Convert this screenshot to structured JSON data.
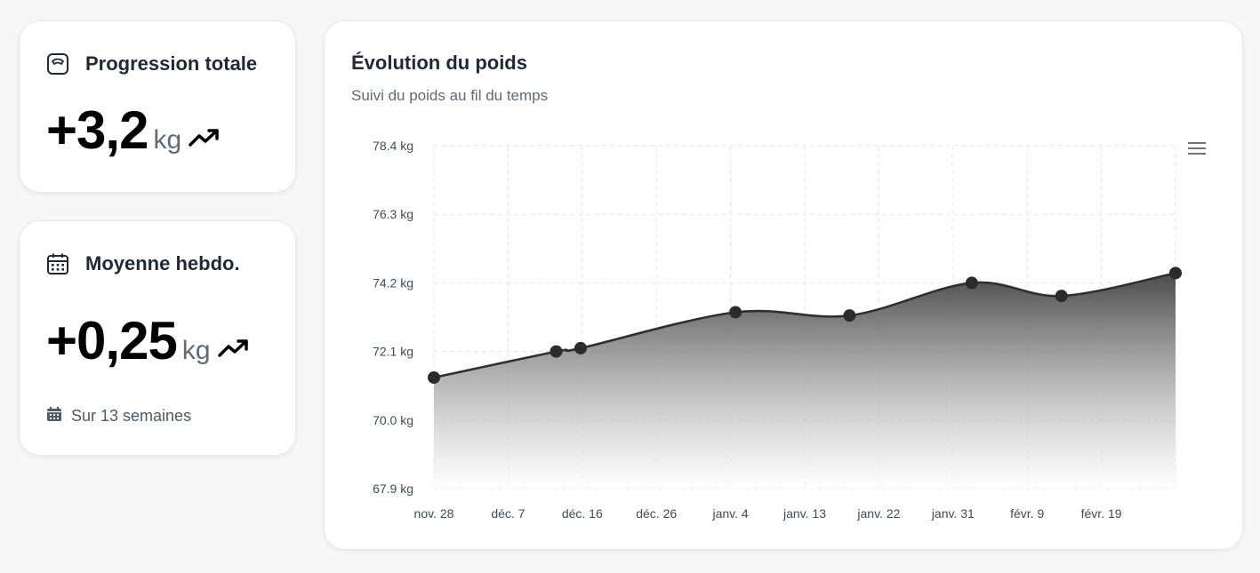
{
  "cards": {
    "total": {
      "title": "Progression totale",
      "value": "+3,2",
      "unit": "kg",
      "icon": "scale-icon",
      "trend_icon": "trend-up-icon"
    },
    "weekly": {
      "title": "Moyenne hebdo.",
      "value": "+0,25",
      "unit": "kg",
      "icon": "calendar-icon",
      "trend_icon": "trend-up-icon",
      "footnote": "Sur 13 semaines",
      "footnote_icon": "calendar-small-icon"
    }
  },
  "chart": {
    "title": "Évolution du poids",
    "subtitle": "Suivi du poids au fil du temps",
    "menu_icon": "hamburger-menu-icon"
  },
  "chart_data": {
    "type": "area",
    "x_tick_labels": [
      "nov. 28",
      "déc. 7",
      "déc. 16",
      "déc. 26",
      "janv. 4",
      "janv. 13",
      "janv. 22",
      "janv. 31",
      "févr. 9",
      "févr. 19"
    ],
    "y_tick_labels": [
      "78.4 kg",
      "76.3 kg",
      "74.2 kg",
      "72.1 kg",
      "70.0 kg",
      "67.9 kg"
    ],
    "ylim": [
      67.9,
      78.4
    ],
    "xlim": [
      "2023-11-28",
      "2024-02-27"
    ],
    "series": [
      {
        "points": [
          {
            "x": "2023-11-28",
            "y": 71.3
          },
          {
            "x": "2023-12-13",
            "y": 72.1
          },
          {
            "x": "2023-12-16",
            "y": 72.2
          },
          {
            "x": "2024-01-04",
            "y": 73.3
          },
          {
            "x": "2024-01-18",
            "y": 73.2
          },
          {
            "x": "2024-02-02",
            "y": 74.2
          },
          {
            "x": "2024-02-13",
            "y": 73.8
          },
          {
            "x": "2024-02-27",
            "y": 74.5
          }
        ]
      }
    ],
    "grid": true,
    "colors": {
      "line": "#2f2f2f",
      "marker": "#2b2b2b",
      "area_top": "#4a4a4a",
      "area_bottom": "#ffffff",
      "grid": "#e6e6e6"
    }
  }
}
